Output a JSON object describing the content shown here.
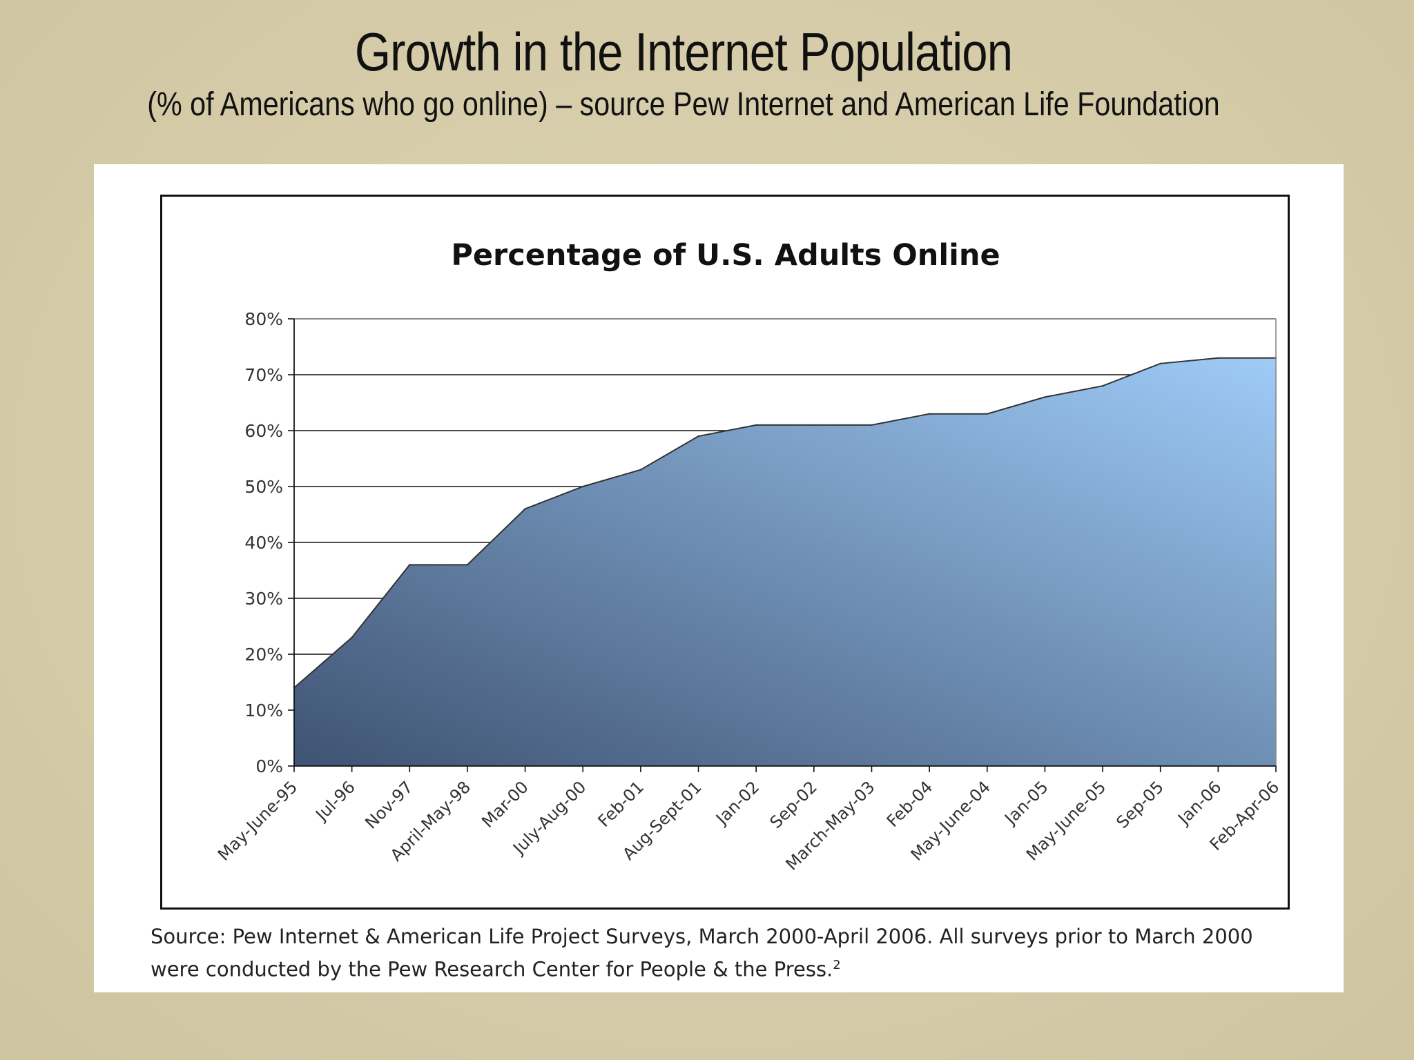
{
  "slide": {
    "title": "Growth in the Internet Population",
    "subtitle": "(% of Americans who go online) – source Pew Internet and American Life Foundation"
  },
  "chart_data": {
    "type": "area",
    "title": "Percentage of U.S. Adults Online",
    "xlabel": "",
    "ylabel": "",
    "ylim": [
      0,
      80
    ],
    "y_ticks": [
      "0%",
      "10%",
      "20%",
      "30%",
      "40%",
      "50%",
      "60%",
      "70%",
      "80%"
    ],
    "grid": true,
    "legend": "none",
    "categories": [
      "May-June-95",
      "Jul-96",
      "Nov-97",
      "April-May-98",
      "Mar-00",
      "July-Aug-00",
      "Feb-01",
      "Aug-Sept-01",
      "Jan-02",
      "Sep-02",
      "March-May-03",
      "Feb-04",
      "May-June-04",
      "Jan-05",
      "May-June-05",
      "Sep-05",
      "Jan-06",
      "Feb-Apr-06"
    ],
    "values": [
      14,
      23,
      36,
      36,
      46,
      50,
      53,
      59,
      61,
      61,
      61,
      63,
      63,
      66,
      68,
      72,
      73,
      73
    ],
    "colors": {
      "fill_dark": "#3f5372",
      "fill_light": "#9ecbf7",
      "outline": "#333333"
    }
  },
  "source": {
    "line1": "Source: Pew Internet & American Life Project Surveys, March 2000-April 2006. All surveys prior to March 2000",
    "line2": "were conducted by the Pew Research Center for People & the Press.",
    "footnote_mark": "2"
  }
}
